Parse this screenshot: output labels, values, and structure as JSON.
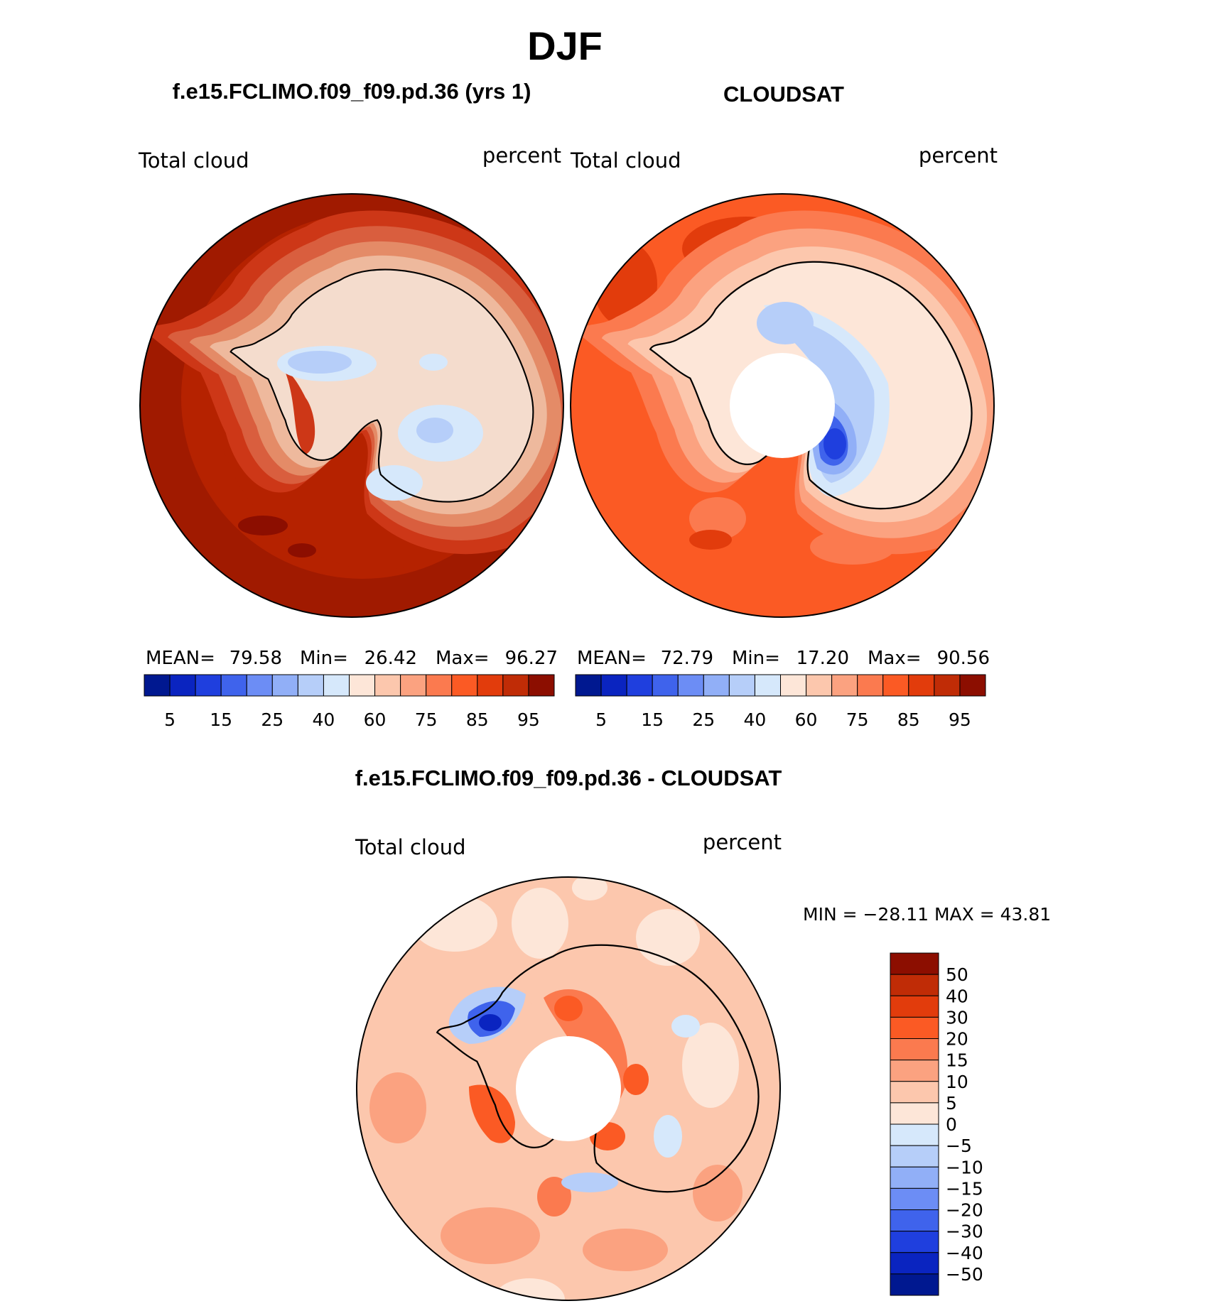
{
  "title": "DJF",
  "colors": {
    "fill10": [
      "#f4dccd",
      "#eeb99d",
      "#e48b67",
      "#d95e3e",
      "#cd3717",
      "#b52200",
      "#a01a00",
      "#8c0e00"
    ],
    "pos": [
      "#fde6d8",
      "#fcc7ad",
      "#fba280",
      "#fb7a4f",
      "#fb5a24",
      "#e23c0c",
      "#c02c06",
      "#8c0e00"
    ],
    "neg": [
      "#d6e8fb",
      "#b6cef9",
      "#91aff7",
      "#6c8df5",
      "#3f63ec",
      "#1f3fde",
      "#0a24c0",
      "#001890"
    ]
  },
  "panels": [
    {
      "id": "model",
      "heading": "f.e15.FCLIMO.f09_f09.pd.36 (yrs 1)",
      "left_label": "Total cloud",
      "right_label": "percent",
      "stats": {
        "mean_label": "MEAN=",
        "mean": "79.58",
        "min_label": "Min=",
        "min": "26.42",
        "max_label": "Max=",
        "max": "96.27"
      },
      "colorbar_ticks": [
        "5",
        "15",
        "25",
        "40",
        "60",
        "75",
        "85",
        "95"
      ]
    },
    {
      "id": "obs",
      "heading": "CLOUDSAT",
      "left_label": "Total cloud",
      "right_label": "percent",
      "stats": {
        "mean_label": "MEAN=",
        "mean": "72.79",
        "min_label": "Min=",
        "min": "17.20",
        "max_label": "Max=",
        "max": "90.56"
      },
      "colorbar_ticks": [
        "5",
        "15",
        "25",
        "40",
        "60",
        "75",
        "85",
        "95"
      ]
    },
    {
      "id": "diff",
      "heading": "f.e15.FCLIMO.f09_f09.pd.36 - CLOUDSAT",
      "left_label": "Total cloud",
      "right_label": "percent",
      "minmax": "MIN = −28.11 MAX =   43.81",
      "colorbar_ticks": [
        "50",
        "40",
        "30",
        "20",
        "15",
        "10",
        "5",
        "0",
        "−5",
        "−10",
        "−15",
        "−20",
        "−30",
        "−40",
        "−50"
      ]
    }
  ],
  "chart_data": [
    {
      "type": "heatmap",
      "projection": "south polar stereographic",
      "title": "f.e15.FCLIMO.f09_f09.pd.36 (yrs 1)",
      "left_label": "Total cloud",
      "unit": "percent",
      "mean": 79.58,
      "min": 26.42,
      "max": 96.27,
      "contour_levels": [
        5,
        10,
        15,
        20,
        25,
        30,
        40,
        50,
        60,
        70,
        75,
        80,
        85,
        90,
        95
      ]
    },
    {
      "type": "heatmap",
      "projection": "south polar stereographic",
      "title": "CLOUDSAT",
      "left_label": "Total cloud",
      "unit": "percent",
      "mean": 72.79,
      "min": 17.2,
      "max": 90.56,
      "contour_levels": [
        5,
        10,
        15,
        20,
        25,
        30,
        40,
        50,
        60,
        70,
        75,
        80,
        85,
        90,
        95
      ]
    },
    {
      "type": "heatmap",
      "projection": "south polar stereographic",
      "title": "f.e15.FCLIMO.f09_f09.pd.36 - CLOUDSAT",
      "left_label": "Total cloud",
      "unit": "percent",
      "min": -28.11,
      "max": 43.81,
      "contour_levels": [
        -50,
        -40,
        -30,
        -20,
        -15,
        -10,
        -5,
        0,
        5,
        10,
        15,
        20,
        30,
        40,
        50
      ]
    }
  ]
}
